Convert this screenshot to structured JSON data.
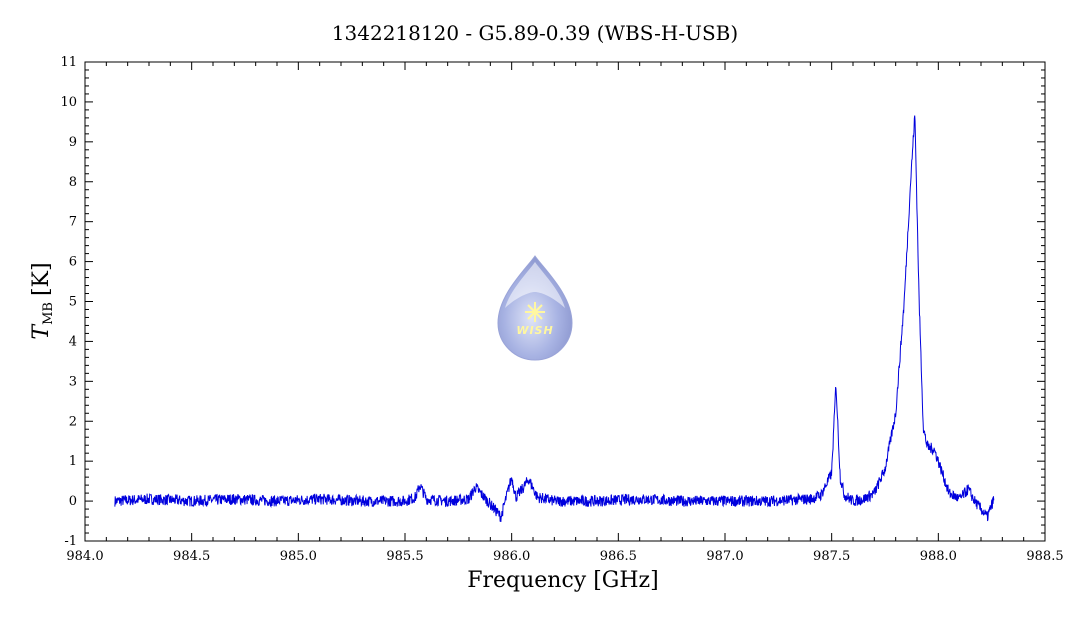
{
  "chart_data": {
    "type": "line",
    "title": "1342218120 - G5.89-0.39 (WBS-H-USB)",
    "xlabel": "Frequency [GHz]",
    "ylabel_main": "T",
    "ylabel_sub": "MB",
    "ylabel_unit": "[K]",
    "xlim": [
      984.0,
      988.5
    ],
    "ylim": [
      -1,
      11
    ],
    "x_ticks": [
      "984.0",
      "984.5",
      "985.0",
      "985.5",
      "986.0",
      "986.5",
      "987.0",
      "987.5",
      "988.0",
      "988.5"
    ],
    "y_ticks": [
      "-1",
      "0",
      "1",
      "2",
      "3",
      "4",
      "5",
      "6",
      "7",
      "8",
      "9",
      "10",
      "11"
    ],
    "grid": false,
    "line_color": "#0000dd",
    "series": [
      {
        "name": "",
        "x": [
          984.14,
          984.3,
          984.5,
          984.7,
          984.9,
          985.1,
          985.3,
          985.5,
          985.55,
          985.57,
          985.6,
          985.7,
          985.8,
          985.83,
          985.87,
          985.92,
          985.95,
          985.98,
          986.0,
          986.02,
          986.05,
          986.08,
          986.12,
          986.2,
          986.4,
          986.6,
          986.8,
          987.0,
          987.2,
          987.4,
          987.45,
          987.5,
          987.52,
          987.54,
          987.56,
          987.6,
          987.65,
          987.7,
          987.75,
          987.8,
          987.84,
          987.87,
          987.89,
          987.91,
          987.93,
          987.95,
          987.98,
          988.0,
          988.05,
          988.1,
          988.14,
          988.17,
          988.2,
          988.23,
          988.26
        ],
        "y": [
          0.0,
          0.05,
          0.0,
          0.05,
          0.0,
          0.05,
          0.0,
          0.0,
          0.1,
          0.4,
          0.05,
          0.0,
          0.05,
          0.35,
          0.1,
          -0.2,
          -0.4,
          0.2,
          0.6,
          0.1,
          0.3,
          0.55,
          0.1,
          0.0,
          0.0,
          0.05,
          0.0,
          0.0,
          0.0,
          0.05,
          0.15,
          0.7,
          2.95,
          0.6,
          0.15,
          0.0,
          0.05,
          0.2,
          0.8,
          2.2,
          5.0,
          8.0,
          9.7,
          5.0,
          1.8,
          1.35,
          1.3,
          1.0,
          0.2,
          0.05,
          0.3,
          0.0,
          -0.2,
          -0.4,
          0.05
        ]
      }
    ]
  },
  "logo": {
    "text": "WISH"
  }
}
